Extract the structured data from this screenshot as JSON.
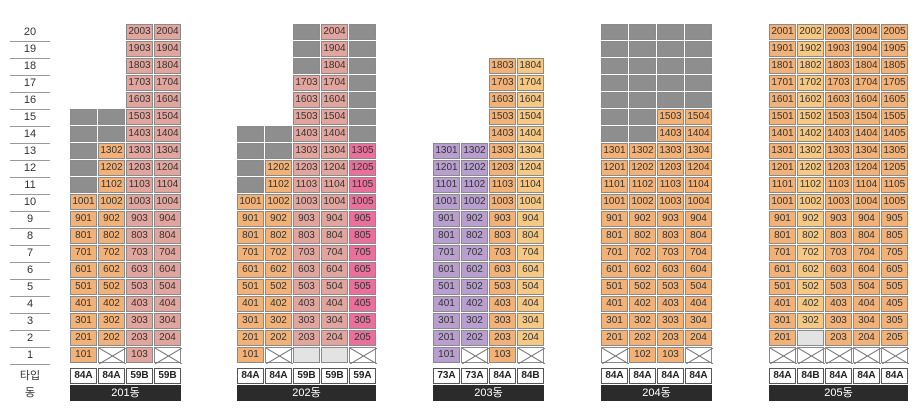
{
  "floor_axis": {
    "floors": [
      "20",
      "19",
      "18",
      "17",
      "16",
      "15",
      "14",
      "13",
      "12",
      "11",
      "10",
      "9",
      "8",
      "7",
      "6",
      "5",
      "4",
      "3",
      "2",
      "1"
    ],
    "type_label": "타입",
    "building_label": "동"
  },
  "legend_colors": {
    "a": "#f2b277",
    "b": "#e2a59d",
    "c": "#f5c884",
    "d": "#e8709b",
    "e": "#b99fcf",
    "blank": "#e3e3e3",
    "gray": "#8e8e8e",
    "x": "#ffffff"
  },
  "buildings": [
    {
      "name": "201동",
      "types": [
        "84A",
        "84A",
        "59B",
        "59B"
      ],
      "rows": {
        "20": [
          "n:",
          "n:",
          "b:2003",
          "b:2004"
        ],
        "19": [
          "n:",
          "n:",
          "b:1903",
          "b:1904"
        ],
        "18": [
          "n:",
          "n:",
          "b:1803",
          "b:1804"
        ],
        "17": [
          "n:",
          "n:",
          "b:1703",
          "b:1704"
        ],
        "16": [
          "n:",
          "n:",
          "b:1603",
          "b:1604"
        ],
        "15": [
          "g:",
          "g:",
          "b:1503",
          "b:1504"
        ],
        "14": [
          "g:",
          "g:",
          "b:1403",
          "b:1404"
        ],
        "13": [
          "g:",
          "a:1302",
          "b:1303",
          "b:1304"
        ],
        "12": [
          "g:",
          "a:1202",
          "b:1203",
          "b:1204"
        ],
        "11": [
          "g:",
          "a:1102",
          "b:1103",
          "b:1104"
        ],
        "10": [
          "a:1001",
          "a:1002",
          "b:1003",
          "b:1004"
        ],
        "9": [
          "a:901",
          "a:902",
          "b:903",
          "b:904"
        ],
        "8": [
          "a:801",
          "a:802",
          "b:803",
          "b:804"
        ],
        "7": [
          "a:701",
          "a:702",
          "b:703",
          "b:704"
        ],
        "6": [
          "a:601",
          "a:602",
          "b:603",
          "b:604"
        ],
        "5": [
          "a:501",
          "a:502",
          "b:503",
          "b:504"
        ],
        "4": [
          "a:401",
          "a:402",
          "b:403",
          "b:404"
        ],
        "3": [
          "a:301",
          "a:302",
          "b:303",
          "b:304"
        ],
        "2": [
          "a:201",
          "a:202",
          "b:203",
          "b:204"
        ],
        "1": [
          "a:101",
          "x:",
          "b:103",
          "x:"
        ]
      }
    },
    {
      "name": "202동",
      "types": [
        "84A",
        "84A",
        "59B",
        "59B",
        "59A"
      ],
      "rows": {
        "20": [
          "n:",
          "n:",
          "g:",
          "b:2004",
          "g:"
        ],
        "19": [
          "n:",
          "n:",
          "g:",
          "b:1904",
          "g:"
        ],
        "18": [
          "n:",
          "n:",
          "g:",
          "b:1804",
          "g:"
        ],
        "17": [
          "n:",
          "n:",
          "b:1703",
          "b:1704",
          "g:"
        ],
        "16": [
          "n:",
          "n:",
          "b:1603",
          "b:1604",
          "g:"
        ],
        "15": [
          "n:",
          "n:",
          "b:1503",
          "b:1504",
          "g:"
        ],
        "14": [
          "g:",
          "g:",
          "b:1403",
          "b:1404",
          "g:"
        ],
        "13": [
          "g:",
          "g:",
          "b:1303",
          "b:1304",
          "d:1305"
        ],
        "12": [
          "g:",
          "a:1202",
          "b:1203",
          "b:1204",
          "d:1205"
        ],
        "11": [
          "g:",
          "a:1102",
          "b:1103",
          "b:1104",
          "d:1105"
        ],
        "10": [
          "a:1001",
          "a:1002",
          "b:1003",
          "b:1004",
          "d:1005"
        ],
        "9": [
          "a:901",
          "a:902",
          "b:903",
          "b:904",
          "d:905"
        ],
        "8": [
          "a:801",
          "a:802",
          "b:803",
          "b:804",
          "d:805"
        ],
        "7": [
          "a:701",
          "a:702",
          "b:703",
          "b:704",
          "d:705"
        ],
        "6": [
          "a:601",
          "a:602",
          "b:603",
          "b:604",
          "d:605"
        ],
        "5": [
          "a:501",
          "a:502",
          "b:503",
          "b:504",
          "d:505"
        ],
        "4": [
          "a:401",
          "a:402",
          "b:403",
          "b:404",
          "d:405"
        ],
        "3": [
          "a:301",
          "a:302",
          "b:303",
          "b:304",
          "d:305"
        ],
        "2": [
          "a:201",
          "a:202",
          "b:203",
          "b:204",
          "d:205"
        ],
        "1": [
          "a:101",
          "x:",
          "k:",
          "k:",
          "x:"
        ]
      }
    },
    {
      "name": "203동",
      "types": [
        "73A",
        "73A",
        "84A",
        "84B"
      ],
      "rows": {
        "20": [
          "n:",
          "n:",
          "n:",
          "n:"
        ],
        "19": [
          "n:",
          "n:",
          "n:",
          "n:"
        ],
        "18": [
          "n:",
          "n:",
          "a:1803",
          "c:1804"
        ],
        "17": [
          "n:",
          "n:",
          "a:1703",
          "c:1704"
        ],
        "16": [
          "n:",
          "n:",
          "a:1603",
          "c:1604"
        ],
        "15": [
          "n:",
          "n:",
          "a:1503",
          "c:1504"
        ],
        "14": [
          "n:",
          "n:",
          "a:1403",
          "c:1404"
        ],
        "13": [
          "e:1301",
          "e:1302",
          "a:1303",
          "c:1304"
        ],
        "12": [
          "e:1201",
          "e:1202",
          "a:1203",
          "c:1204"
        ],
        "11": [
          "e:1101",
          "e:1102",
          "a:1103",
          "c:1104"
        ],
        "10": [
          "e:1001",
          "e:1002",
          "a:1003",
          "c:1004"
        ],
        "9": [
          "e:901",
          "e:902",
          "a:903",
          "c:904"
        ],
        "8": [
          "e:801",
          "e:802",
          "a:803",
          "c:804"
        ],
        "7": [
          "e:701",
          "e:702",
          "a:703",
          "c:704"
        ],
        "6": [
          "e:601",
          "e:602",
          "a:603",
          "c:604"
        ],
        "5": [
          "e:501",
          "e:502",
          "a:503",
          "c:504"
        ],
        "4": [
          "e:401",
          "e:402",
          "a:403",
          "c:404"
        ],
        "3": [
          "e:301",
          "e:302",
          "a:303",
          "c:304"
        ],
        "2": [
          "e:201",
          "e:202",
          "a:203",
          "c:204"
        ],
        "1": [
          "e:101",
          "x:",
          "a:103",
          "x:"
        ]
      }
    },
    {
      "name": "204동",
      "types": [
        "84A",
        "84A",
        "84A",
        "84A"
      ],
      "rows": {
        "20": [
          "g:",
          "g:",
          "g:",
          "g:"
        ],
        "19": [
          "g:",
          "g:",
          "g:",
          "g:"
        ],
        "18": [
          "g:",
          "g:",
          "g:",
          "g:"
        ],
        "17": [
          "g:",
          "g:",
          "g:",
          "g:"
        ],
        "16": [
          "g:",
          "g:",
          "g:",
          "g:"
        ],
        "15": [
          "g:",
          "g:",
          "a:1503",
          "a:1504"
        ],
        "14": [
          "g:",
          "g:",
          "a:1403",
          "a:1404"
        ],
        "13": [
          "a:1301",
          "a:1302",
          "a:1303",
          "a:1304"
        ],
        "12": [
          "a:1201",
          "a:1202",
          "a:1203",
          "a:1204"
        ],
        "11": [
          "a:1101",
          "a:1102",
          "a:1103",
          "a:1104"
        ],
        "10": [
          "a:1001",
          "a:1002",
          "a:1003",
          "a:1004"
        ],
        "9": [
          "a:901",
          "a:902",
          "a:903",
          "a:904"
        ],
        "8": [
          "a:801",
          "a:802",
          "a:803",
          "a:804"
        ],
        "7": [
          "a:701",
          "a:702",
          "a:703",
          "a:704"
        ],
        "6": [
          "a:601",
          "a:602",
          "a:603",
          "a:604"
        ],
        "5": [
          "a:501",
          "a:502",
          "a:503",
          "a:504"
        ],
        "4": [
          "a:401",
          "a:402",
          "a:403",
          "a:404"
        ],
        "3": [
          "a:301",
          "a:302",
          "a:303",
          "a:304"
        ],
        "2": [
          "a:201",
          "a:202",
          "a:203",
          "a:204"
        ],
        "1": [
          "x:",
          "a:102",
          "a:103",
          "x:"
        ]
      }
    },
    {
      "name": "205동",
      "types": [
        "84A",
        "84B",
        "84A",
        "84A",
        "84A"
      ],
      "rows": {
        "20": [
          "a:2001",
          "c:2002",
          "a:2003",
          "a:2004",
          "a:2005"
        ],
        "19": [
          "a:1901",
          "c:1902",
          "a:1903",
          "a:1904",
          "a:1905"
        ],
        "18": [
          "a:1801",
          "c:1802",
          "a:1803",
          "a:1804",
          "a:1805"
        ],
        "17": [
          "a:1701",
          "c:1702",
          "a:1703",
          "a:1704",
          "a:1705"
        ],
        "16": [
          "a:1601",
          "c:1602",
          "a:1603",
          "a:1604",
          "a:1605"
        ],
        "15": [
          "a:1501",
          "c:1502",
          "a:1503",
          "a:1504",
          "a:1505"
        ],
        "14": [
          "a:1401",
          "c:1402",
          "a:1403",
          "a:1404",
          "a:1405"
        ],
        "13": [
          "a:1301",
          "c:1302",
          "a:1303",
          "a:1304",
          "a:1305"
        ],
        "12": [
          "a:1201",
          "c:1202",
          "a:1203",
          "a:1204",
          "a:1205"
        ],
        "11": [
          "a:1101",
          "c:1102",
          "a:1103",
          "a:1104",
          "a:1105"
        ],
        "10": [
          "a:1001",
          "c:1002",
          "a:1003",
          "a:1004",
          "a:1005"
        ],
        "9": [
          "a:901",
          "c:902",
          "a:903",
          "a:904",
          "a:905"
        ],
        "8": [
          "a:801",
          "c:802",
          "a:803",
          "a:804",
          "a:805"
        ],
        "7": [
          "a:701",
          "c:702",
          "a:703",
          "a:704",
          "a:705"
        ],
        "6": [
          "a:601",
          "c:602",
          "a:603",
          "a:604",
          "a:605"
        ],
        "5": [
          "a:501",
          "c:502",
          "a:503",
          "a:504",
          "a:505"
        ],
        "4": [
          "a:401",
          "c:402",
          "a:403",
          "a:404",
          "a:405"
        ],
        "3": [
          "a:301",
          "c:302",
          "a:303",
          "a:304",
          "a:305"
        ],
        "2": [
          "a:201",
          "k:",
          "a:203",
          "a:204",
          "a:205"
        ],
        "1": [
          "x:",
          "x:",
          "x:",
          "x:",
          "x:"
        ]
      }
    }
  ]
}
